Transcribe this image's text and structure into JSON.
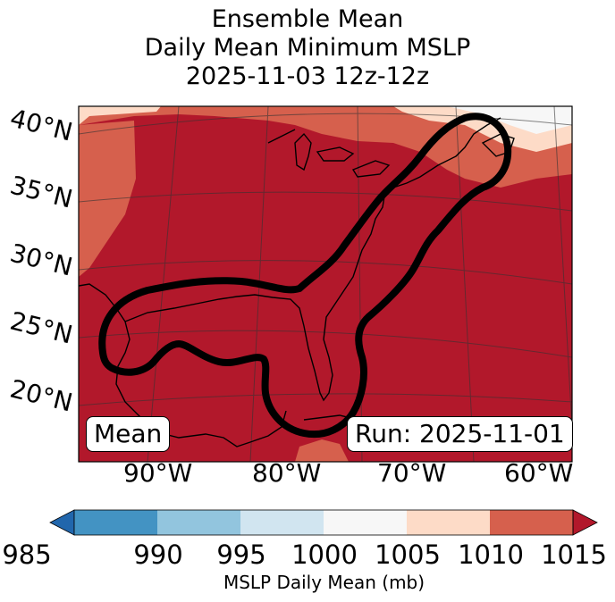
{
  "title_lines": [
    "Ensemble Mean",
    "Daily Mean Minimum MSLP",
    "2025-11-03 12z-12z"
  ],
  "lat_labels": [
    "40°N",
    "35°N",
    "30°N",
    "25°N",
    "20°N"
  ],
  "lon_labels": [
    "90°W",
    "80°W",
    "70°W",
    "60°W"
  ],
  "mean_label": "Mean",
  "run_label": "Run: 2025-11-01",
  "colorbar": {
    "label": "MSLP Daily Mean (mb)",
    "ticks": [
      "985",
      "990",
      "995",
      "1000",
      "1005",
      "1010",
      "1015"
    ],
    "colors": [
      "#2166ac",
      "#4393c3",
      "#92c5de",
      "#d1e5f0",
      "#f7f7f7",
      "#fddbc7",
      "#d6604d",
      "#b2182b"
    ]
  },
  "map_colors": {
    "base": "#b2182b",
    "band_1005_1010": "#d6604d",
    "band_1000_1005": "#fddbc7",
    "band_995_1000": "#f7f7f7"
  }
}
